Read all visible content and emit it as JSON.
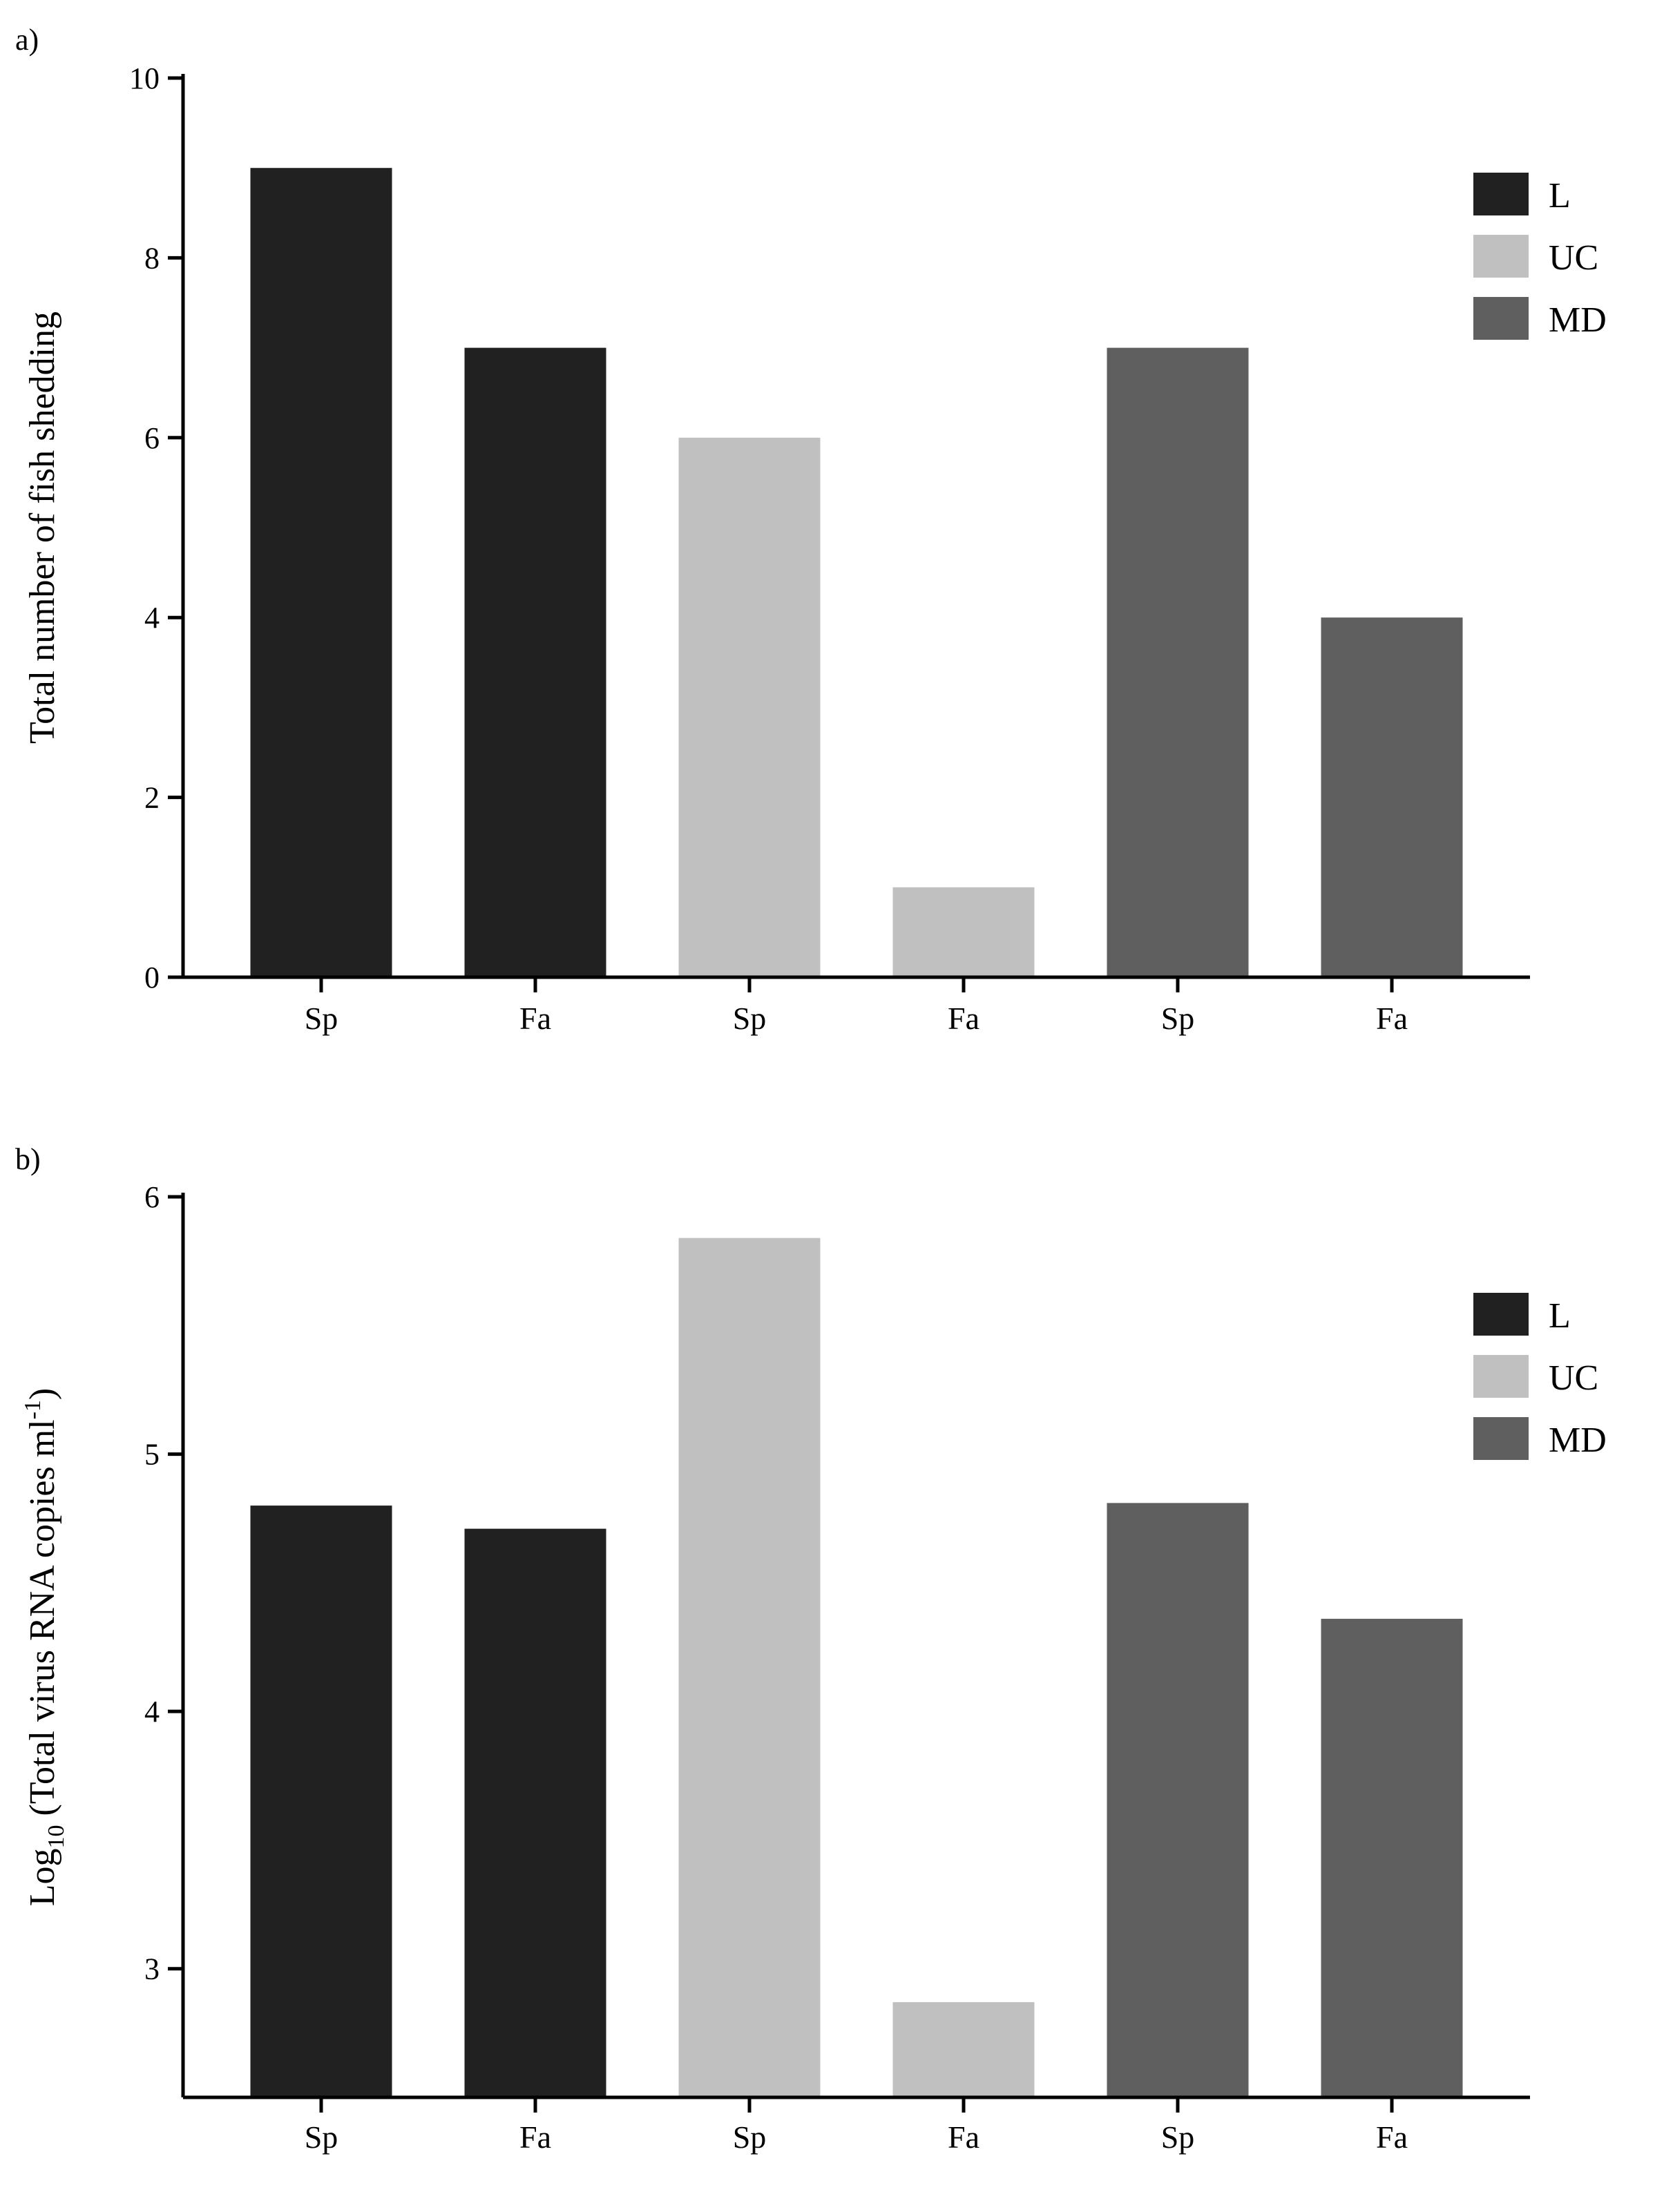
{
  "colors": {
    "L": "#212121",
    "UC": "#c0c0c0",
    "MD": "#5f5f5f"
  },
  "legend": [
    {
      "key": "L",
      "label": "L"
    },
    {
      "key": "UC",
      "label": "UC"
    },
    {
      "key": "MD",
      "label": "MD"
    }
  ],
  "chart_data": [
    {
      "panel": "a)",
      "type": "bar",
      "ylabel": "Total number of fish shedding",
      "ylim": [
        0,
        10
      ],
      "yticks": [
        0,
        2,
        4,
        6,
        8,
        10
      ],
      "categories": [
        "Sp",
        "Fa",
        "Sp",
        "Fa",
        "Sp",
        "Fa"
      ],
      "bars": [
        {
          "group": "L",
          "category": "Sp",
          "value": 9
        },
        {
          "group": "L",
          "category": "Fa",
          "value": 7
        },
        {
          "group": "UC",
          "category": "Sp",
          "value": 6
        },
        {
          "group": "UC",
          "category": "Fa",
          "value": 1
        },
        {
          "group": "MD",
          "category": "Sp",
          "value": 7
        },
        {
          "group": "MD",
          "category": "Fa",
          "value": 4
        }
      ],
      "legend": [
        "L",
        "UC",
        "MD"
      ],
      "grid": false
    },
    {
      "panel": "b)",
      "type": "bar",
      "ylabel": {
        "main": "Log",
        "sub": "10",
        "rest": " (Total virus RNA copies ml",
        "sup": "-1",
        "end": ")"
      },
      "ylim": [
        2.5,
        6
      ],
      "yticks": [
        3,
        4,
        5,
        6
      ],
      "categories": [
        "Sp",
        "Fa",
        "Sp",
        "Fa",
        "Sp",
        "Fa"
      ],
      "bars": [
        {
          "group": "L",
          "category": "Sp",
          "value": 4.8
        },
        {
          "group": "L",
          "category": "Fa",
          "value": 4.71
        },
        {
          "group": "UC",
          "category": "Sp",
          "value": 5.84
        },
        {
          "group": "UC",
          "category": "Fa",
          "value": 2.87
        },
        {
          "group": "MD",
          "category": "Sp",
          "value": 4.81
        },
        {
          "group": "MD",
          "category": "Fa",
          "value": 4.36
        }
      ],
      "legend": [
        "L",
        "UC",
        "MD"
      ],
      "grid": false
    }
  ]
}
